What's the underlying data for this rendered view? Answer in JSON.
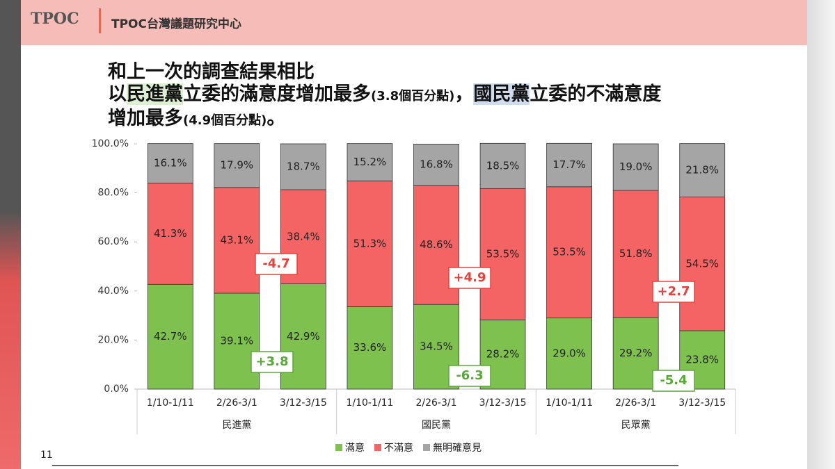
{
  "header": {
    "logo": "TPOC",
    "org": "TPOC台灣議題研究中心"
  },
  "headline": {
    "line1": "和上一次的調查結果相比",
    "line2": [
      "以",
      "民進黨",
      "立委的滿意度增加最多",
      "(3.8個百分點)",
      "，",
      "國民黨",
      "立委的不滿意度"
    ],
    "line3": [
      "增加最多",
      "(4.9個百分點)",
      "。"
    ]
  },
  "page_number": "11",
  "chart_data": {
    "type": "stacked-bar",
    "categories": [
      "1/10-1/11",
      "2/26-3/1",
      "3/12-3/15",
      "1/10-1/11",
      "2/26-3/1",
      "3/12-3/15",
      "1/10-1/11",
      "2/26-3/1",
      "3/12-3/15"
    ],
    "group_labels": [
      "民進黨",
      "國民黨",
      "民眾黨"
    ],
    "series": [
      {
        "name": "滿意",
        "color": "#7ec14e",
        "values": [
          42.7,
          39.1,
          42.9,
          33.6,
          34.5,
          28.2,
          29.0,
          29.2,
          23.8
        ],
        "value_labels": [
          "42.7%",
          "39.1%",
          "42.9%",
          "33.6%",
          "34.5%",
          "28.2%",
          "29.0%",
          "29.2%",
          "23.8%"
        ]
      },
      {
        "name": "不滿意",
        "color": "#f46464",
        "values": [
          41.3,
          43.1,
          38.4,
          51.3,
          48.6,
          53.5,
          53.5,
          51.8,
          54.5
        ],
        "value_labels": [
          "41.3%",
          "43.1%",
          "38.4%",
          "51.3%",
          "48.6%",
          "53.5%",
          "53.5%",
          "51.8%",
          "54.5%"
        ]
      },
      {
        "name": "無明確意見",
        "color": "#a5a5a5",
        "values": [
          16.1,
          17.9,
          18.7,
          15.2,
          16.8,
          18.5,
          17.7,
          19.0,
          21.8
        ],
        "value_labels": [
          "16.1%",
          "17.9%",
          "18.7%",
          "15.2%",
          "16.8%",
          "18.5%",
          "17.7%",
          "19.0%",
          "21.8%"
        ]
      }
    ],
    "ylim": [
      0,
      100
    ],
    "yticks": [
      {
        "value": 0,
        "label": "0.0%"
      },
      {
        "value": 20,
        "label": "20.0%"
      },
      {
        "value": 40,
        "label": "40.0%"
      },
      {
        "value": 60,
        "label": "60.0%"
      },
      {
        "value": 80,
        "label": "80.0%"
      },
      {
        "value": 100,
        "label": "100.0%"
      }
    ],
    "annotations": [
      {
        "text": "-4.7",
        "color": "#e8413c"
      },
      {
        "text": "+3.8",
        "color": "#5aa83a"
      },
      {
        "text": "+4.9",
        "color": "#e8413c"
      },
      {
        "text": "-6.3",
        "color": "#5aa83a"
      },
      {
        "text": "+2.7",
        "color": "#e8413c"
      },
      {
        "text": "-5.4",
        "color": "#5aa83a"
      }
    ],
    "legend": "bottom",
    "grid": false
  }
}
